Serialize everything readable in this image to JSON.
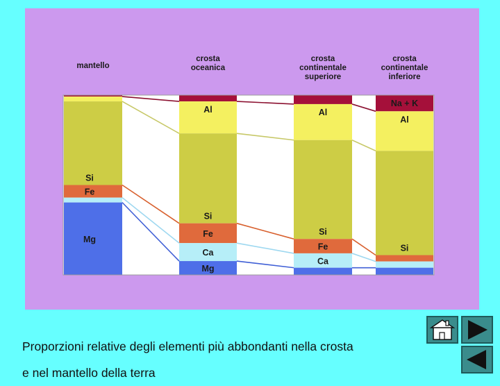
{
  "caption": {
    "line1": "Proporzioni relative degli elementi più abbondanti nella crosta",
    "line2": "e nel mantello della terra"
  },
  "colors": {
    "page_bg": "#66FFFF",
    "panel_bg": "#CC99EE",
    "NaK": "#A5103A",
    "Al": "#F4F060",
    "Si": "#CDCD45",
    "Fe": "#E06A3C",
    "Ca": "#B6EEF8",
    "Mg": "#4E6FE8",
    "gap": "#FFFFFF"
  },
  "navigation": {
    "home_icon": "house-icon",
    "next_icon": "triangle-right-icon",
    "prev_icon": "triangle-left-icon"
  },
  "chart_data": {
    "type": "stacked-column",
    "element_order": [
      "NaK",
      "Al",
      "Si",
      "Fe",
      "Ca",
      "Mg"
    ],
    "columns": [
      {
        "id": "mantello",
        "label_lines": [
          "mantello"
        ],
        "fractions": {
          "NaK": 0.008,
          "Al": 0.027,
          "Si": 0.465,
          "Fe": 0.07,
          "Ca": 0.027,
          "Mg": 0.403
        },
        "labels": {
          "Si": "Si",
          "Fe": "Fe",
          "Mg": "Mg"
        }
      },
      {
        "id": "crosta-oceanica",
        "label_lines": [
          "crosta",
          "oceanica"
        ],
        "fractions": {
          "NaK": 0.035,
          "Al": 0.178,
          "Si": 0.5,
          "Fe": 0.11,
          "Ca": 0.1,
          "Mg": 0.077
        },
        "labels": {
          "Al": "Al",
          "Si": "Si",
          "Fe": "Fe",
          "Ca": "Ca",
          "Mg": "Mg"
        }
      },
      {
        "id": "crosta-continentale-superiore",
        "label_lines": [
          "crosta",
          "continentale",
          "superiore"
        ],
        "fractions": {
          "NaK": 0.05,
          "Al": 0.2,
          "Si": 0.55,
          "Fe": 0.08,
          "Ca": 0.08,
          "Mg": 0.04
        },
        "labels": {
          "Al": "Al",
          "Si": "Si",
          "Fe": "Fe",
          "Ca": "Ca"
        }
      },
      {
        "id": "crosta-continentale-inferiore",
        "label_lines": [
          "crosta",
          "continentale",
          "inferiore"
        ],
        "fractions": {
          "NaK": 0.09,
          "Al": 0.22,
          "Si": 0.58,
          "Fe": 0.035,
          "Ca": 0.035,
          "Mg": 0.04
        },
        "labels": {
          "NaK": "Na + K",
          "Al": "Al",
          "Si": "Si"
        }
      }
    ]
  }
}
